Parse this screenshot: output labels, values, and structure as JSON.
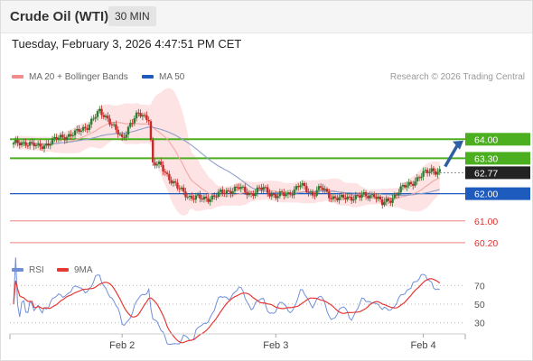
{
  "header": {
    "title": "Crude Oil (WTI)",
    "interval": "30 MIN"
  },
  "datetime": "Tuesday, February 3, 2026 4:47:51 PM CET",
  "legend": {
    "ma20": "MA 20 + Bollinger Bands",
    "ma50": "MA 50",
    "credit": "Research © 2026 Trading Central"
  },
  "rsi_legend": {
    "rsi": "RSI",
    "ma9": "9MA"
  },
  "colors": {
    "up": "#2e7d32",
    "down": "#c62828",
    "resistance": "#4caf1f",
    "pivot": "#1d5bbf",
    "support": "#f08080",
    "bollinger": "#fde3e3",
    "ma20": "#f4a6a6",
    "ma50": "#8fa0c8",
    "rsi": "#6f8fd8",
    "rsi_ma": "#e53935",
    "arrow": "#2f5fa3"
  },
  "chart_data": [
    {
      "type": "candlestick",
      "title": "Crude Oil (WTI)",
      "interval": "30 MIN",
      "ylim": [
        59.5,
        65.8
      ],
      "x_ticks": [
        "Feb 2",
        "Feb 3",
        "Feb 4"
      ],
      "levels": [
        {
          "value": 64.0,
          "label": "64.00",
          "kind": "resistance"
        },
        {
          "value": 63.3,
          "label": "63.30",
          "kind": "resistance"
        },
        {
          "value": 62.77,
          "label": "62.77",
          "kind": "last"
        },
        {
          "value": 62.0,
          "label": "62.00",
          "kind": "pivot"
        },
        {
          "value": 61.0,
          "label": "61.00",
          "kind": "support"
        },
        {
          "value": 60.2,
          "label": "60.20",
          "kind": "support"
        }
      ],
      "series": [
        {
          "name": "MA 20 + Bollinger Bands"
        },
        {
          "name": "MA 50"
        }
      ]
    },
    {
      "type": "line",
      "title": "RSI",
      "ylim": [
        20,
        80
      ],
      "y_ticks": [
        "70",
        "50",
        "30"
      ],
      "series": [
        {
          "name": "RSI"
        },
        {
          "name": "9MA"
        }
      ]
    }
  ]
}
